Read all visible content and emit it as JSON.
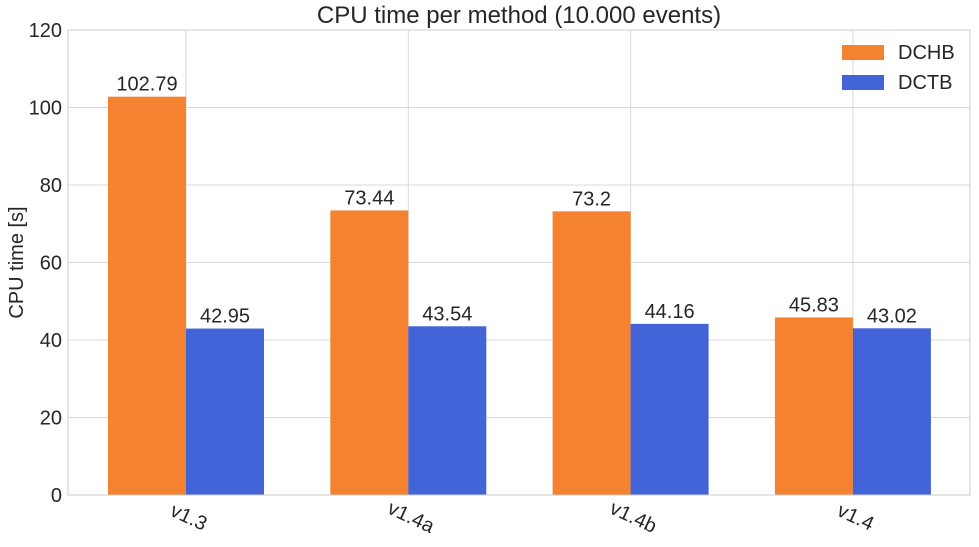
{
  "chart_data": {
    "type": "bar",
    "title": "CPU time per method (10.000 events)",
    "xlabel": "",
    "ylabel": "CPU time [s]",
    "categories": [
      "v1.3",
      "v1.4a",
      "v1.4b",
      "v1.4"
    ],
    "series": [
      {
        "name": "DCHB",
        "color": "#f58231",
        "values": [
          102.79,
          73.44,
          73.2,
          45.83
        ],
        "labels": [
          "102.79",
          "73.44",
          "73.2",
          "45.83"
        ]
      },
      {
        "name": "DCTB",
        "color": "#4363d8",
        "values": [
          42.95,
          43.54,
          44.16,
          43.02
        ],
        "labels": [
          "42.95",
          "43.54",
          "44.16",
          "43.02"
        ]
      }
    ],
    "ylim": [
      0,
      120
    ],
    "yticks": [
      0,
      20,
      40,
      60,
      80,
      100,
      120
    ],
    "grid": true,
    "legend_position": "top-right",
    "x_tick_rotation": "rotated"
  }
}
